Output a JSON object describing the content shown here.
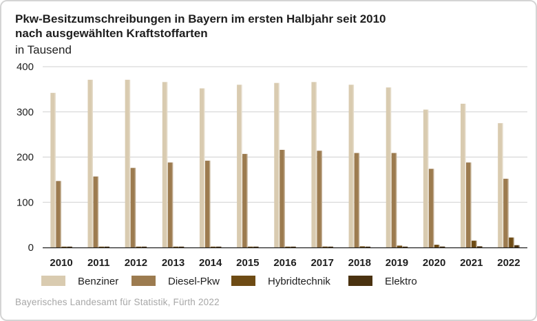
{
  "title_line1": "Pkw-Besitzumschreibungen in Bayern im ersten Halbjahr seit 2010",
  "title_line2": "nach ausgewählten Kraftstoffarten",
  "unit": "in Tausend",
  "source": "Bayerisches Landesamt für Statistik, Fürth 2022",
  "colors": {
    "benziner": "#d9cbb0",
    "diesel": "#9c7b4f",
    "hybrid": "#6e4b14",
    "elektro": "#4a3210",
    "grid": "#cfcfcf",
    "axis": "#1e1e1e"
  },
  "chart_data": {
    "type": "bar",
    "title": "Pkw-Besitzumschreibungen in Bayern im ersten Halbjahr seit 2010",
    "subtitle": "nach ausgewählten Kraftstoffarten",
    "ylabel": "in Tausend",
    "xlabel": "",
    "ylim": [
      0,
      400
    ],
    "yticks": [
      0,
      100,
      200,
      300,
      400
    ],
    "grid": true,
    "legend_position": "bottom",
    "categories": [
      "2010",
      "2011",
      "2012",
      "2013",
      "2014",
      "2015",
      "2016",
      "2017",
      "2018",
      "2019",
      "2020",
      "2021",
      "2022"
    ],
    "series": [
      {
        "name": "Benziner",
        "values": [
          342,
          371,
          371,
          366,
          352,
          360,
          364,
          366,
          360,
          354,
          305,
          318,
          275
        ]
      },
      {
        "name": "Diesel-Pkw",
        "values": [
          147,
          157,
          176,
          188,
          192,
          207,
          216,
          214,
          209,
          209,
          174,
          188,
          152
        ]
      },
      {
        "name": "Hybridtechnik",
        "values": [
          0.3,
          0.5,
          0.7,
          1,
          1,
          1.2,
          1.5,
          2,
          2.5,
          4,
          6,
          15,
          22
        ]
      },
      {
        "name": "Elektro",
        "values": [
          0.1,
          0.1,
          0.1,
          0.2,
          0.3,
          0.5,
          0.5,
          0.8,
          1,
          1.5,
          2,
          2.5,
          5
        ]
      }
    ]
  }
}
